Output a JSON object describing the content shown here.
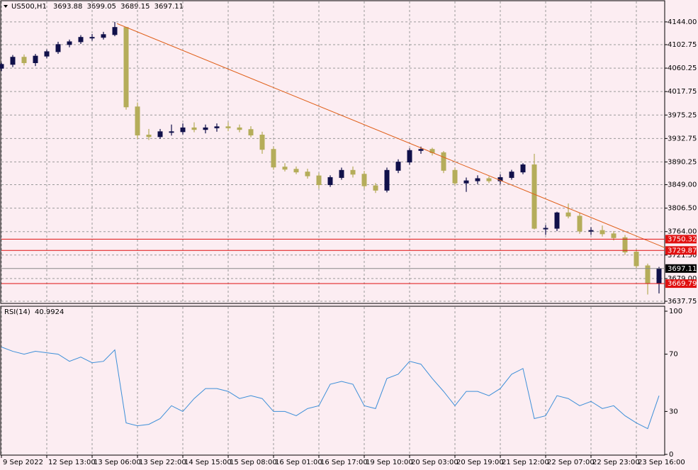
{
  "chart_data": [
    {
      "type": "candlestick",
      "title": "US500,H1",
      "header_values": [
        3693.88,
        3699.05,
        3689.15,
        3697.11
      ],
      "categories": [
        "9 Sep 2022",
        null,
        null,
        null,
        "12 Sep 13:00",
        null,
        null,
        null,
        "13 Sep 06:00",
        null,
        null,
        null,
        "13 Sep 22:00",
        null,
        null,
        null,
        "14 Sep 15:00",
        null,
        null,
        null,
        "15 Sep 08:00",
        null,
        null,
        null,
        "16 Sep 01:00",
        null,
        null,
        null,
        "16 Sep 17:00",
        null,
        null,
        null,
        "19 Sep 10:00",
        null,
        null,
        null,
        "20 Sep 03:00",
        null,
        null,
        null,
        "20 Sep 19:00",
        null,
        null,
        null,
        "21 Sep 12:00",
        null,
        null,
        null,
        "22 Sep 07:00",
        null,
        null,
        null,
        "22 Sep 23:00",
        null,
        null,
        null,
        "23 Sep 16:00",
        null,
        null
      ],
      "open": [
        4060,
        4067,
        4080,
        4070,
        4082,
        4090,
        4103,
        4108,
        4116,
        4116,
        4121,
        4134,
        3990,
        3939,
        3936,
        3945,
        3945,
        3952,
        3949,
        3952,
        3954,
        3952,
        3949,
        3939,
        3913,
        3881,
        3877,
        3872,
        3865,
        3849,
        3862,
        3875,
        3868,
        3847,
        3839,
        3875,
        3890,
        3911,
        3913,
        3907,
        3875,
        3852,
        3856,
        3860,
        3856,
        3862,
        3872,
        3885,
        3770,
        3770,
        3798,
        3792,
        3765,
        3766,
        3760,
        3753,
        3727,
        3702,
        3670
      ],
      "high": [
        4070,
        4084,
        4085,
        4086,
        4094,
        4108,
        4112,
        4120,
        4122,
        4126,
        4144,
        4135,
        3998,
        3950,
        3950,
        3958,
        3960,
        3962,
        3958,
        3960,
        3962,
        3958,
        3955,
        3945,
        3918,
        3888,
        3882,
        3878,
        3870,
        3866,
        3880,
        3882,
        3874,
        3852,
        3880,
        3895,
        3915,
        3918,
        3916,
        3910,
        3880,
        3862,
        3866,
        3864,
        3868,
        3876,
        3888,
        3905,
        3776,
        3800,
        3815,
        3798,
        3772,
        3775,
        3765,
        3758,
        3732,
        3706,
        3700
      ],
      "low": [
        4055,
        4062,
        4065,
        4064,
        4078,
        4086,
        4098,
        4104,
        4110,
        4112,
        4118,
        3985,
        3932,
        3930,
        3932,
        3938,
        3940,
        3944,
        3942,
        3945,
        3946,
        3944,
        3935,
        3905,
        3876,
        3873,
        3868,
        3860,
        3842,
        3845,
        3858,
        3862,
        3842,
        3834,
        3835,
        3870,
        3885,
        3905,
        3902,
        3870,
        3848,
        3836,
        3850,
        3852,
        3850,
        3858,
        3868,
        3768,
        3758,
        3765,
        3788,
        3760,
        3758,
        3755,
        3748,
        3722,
        3698,
        3650,
        3652
      ],
      "close": [
        4067,
        4080,
        4070,
        4082,
        4090,
        4103,
        4108,
        4116,
        4116,
        4121,
        4134,
        3990,
        3939,
        3936,
        3945,
        3945,
        3952,
        3949,
        3952,
        3954,
        3952,
        3949,
        3939,
        3913,
        3881,
        3877,
        3872,
        3865,
        3849,
        3862,
        3875,
        3868,
        3847,
        3839,
        3875,
        3890,
        3911,
        3913,
        3907,
        3875,
        3852,
        3856,
        3860,
        3856,
        3862,
        3872,
        3885,
        3770,
        3770,
        3798,
        3792,
        3765,
        3766,
        3760,
        3753,
        3727,
        3702,
        3670,
        3697
      ],
      "up_color": "#10104a",
      "down_color": "#b5ad5a",
      "ylim": [
        3633.9,
        4182.4
      ],
      "yticks": [
        {
          "value": 4144,
          "label": "4144.00"
        },
        {
          "value": 4102.75,
          "label": "4102.75"
        },
        {
          "value": 4060.25,
          "label": "4060.25"
        },
        {
          "value": 4017.75,
          "label": "4017.75"
        },
        {
          "value": 3975.25,
          "label": "3975.25"
        },
        {
          "value": 3932.75,
          "label": "3932.75"
        },
        {
          "value": 3890.25,
          "label": "3890.25"
        },
        {
          "value": 3849,
          "label": "3849.00"
        },
        {
          "value": 3806.5,
          "label": "3806.50"
        },
        {
          "value": 3764,
          "label": "3764.00"
        },
        {
          "value": 3721.5,
          "label": "3721.50"
        },
        {
          "value": 3679,
          "label": "3679.00"
        },
        {
          "value": 3637.75,
          "label": "3637.75"
        }
      ],
      "grid": true,
      "levels": [
        {
          "value": 3750.32,
          "color": "#e01010"
        },
        {
          "value": 3729.87,
          "color": "#e01010"
        },
        {
          "value": 3669.79,
          "color": "#e01010"
        }
      ],
      "last_price": 3697.11,
      "trendline": {
        "x": [
          10.2,
          58.5
        ],
        "y": [
          4141,
          3735
        ],
        "color": "#e0601a"
      }
    },
    {
      "type": "line",
      "title": "RSI(14)",
      "value": 40.9924,
      "color": "#3d8fd8",
      "values": [
        75,
        72,
        70,
        72,
        71,
        70,
        65,
        68,
        64,
        65,
        73,
        22,
        20,
        21,
        25,
        34,
        30,
        39,
        46,
        46,
        44,
        39,
        41,
        39,
        30,
        30,
        27,
        32,
        34,
        49,
        51,
        49,
        34,
        32,
        53,
        56,
        65,
        63,
        53,
        44,
        34,
        44,
        44,
        41,
        46,
        56,
        60,
        25,
        27,
        41,
        39,
        34,
        37,
        32,
        34,
        27,
        22,
        18,
        41
      ],
      "ylim": [
        0,
        100
      ],
      "yticks": [
        100,
        70,
        30,
        0
      ]
    }
  ]
}
